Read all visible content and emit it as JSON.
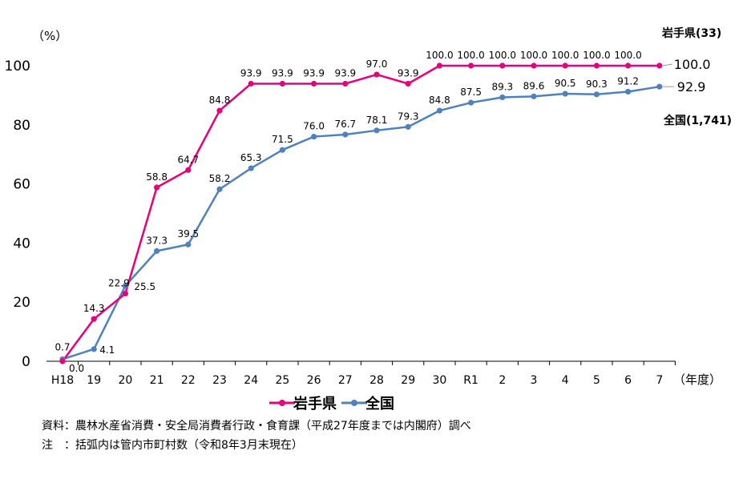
{
  "chart_data": {
    "type": "line",
    "y_unit_label": "（%）",
    "x_unit_label": "（年度）",
    "categories": [
      "H18",
      "19",
      "20",
      "21",
      "22",
      "23",
      "24",
      "25",
      "26",
      "27",
      "28",
      "29",
      "30",
      "R1",
      "2",
      "3",
      "4",
      "5",
      "6",
      "7"
    ],
    "ylim": [
      0,
      100
    ],
    "yticks": [
      0,
      20,
      40,
      60,
      80,
      100
    ],
    "grid": false,
    "legend_position": "bottom",
    "series": [
      {
        "name": "岩手県",
        "end_label": "岩手県(33)",
        "color": "#E6007E",
        "values": [
          0.0,
          14.3,
          22.9,
          58.8,
          64.7,
          84.8,
          93.9,
          93.9,
          93.9,
          93.9,
          97.0,
          93.9,
          100.0,
          100.0,
          100.0,
          100.0,
          100.0,
          100.0,
          100.0,
          100.0
        ],
        "labels": [
          "0.0",
          "14.3",
          "22.9",
          "58.8",
          "64.7",
          "84.8",
          "93.9",
          "93.9",
          "93.9",
          "93.9",
          "97.0",
          "93.9",
          "100.0",
          "100.0",
          "100.0",
          "100.0",
          "100.0",
          "100.0",
          "100.0",
          "100.0"
        ]
      },
      {
        "name": "全国",
        "end_label": "全国(1,741)",
        "color": "#4F81BD",
        "values": [
          0.7,
          4.1,
          25.5,
          37.3,
          39.5,
          58.2,
          65.3,
          71.5,
          76.0,
          76.7,
          78.1,
          79.3,
          84.8,
          87.5,
          89.3,
          89.6,
          90.5,
          90.3,
          91.2,
          92.9
        ],
        "labels": [
          "0.7",
          "4.1",
          "25.5",
          "37.3",
          "39.5",
          "58.2",
          "65.3",
          "71.5",
          "76.0",
          "76.7",
          "78.1",
          "79.3",
          "84.8",
          "87.5",
          "89.3",
          "89.6",
          "90.5",
          "90.3",
          "91.2",
          "92.9"
        ]
      }
    ]
  },
  "notes": {
    "source": "資料：農林水産省消費・安全局消費者行政・食育課（平成27年度までは内閣府）調べ",
    "caption": "注　：括弧内は管内市町村数（令和8年3月末現在）"
  }
}
